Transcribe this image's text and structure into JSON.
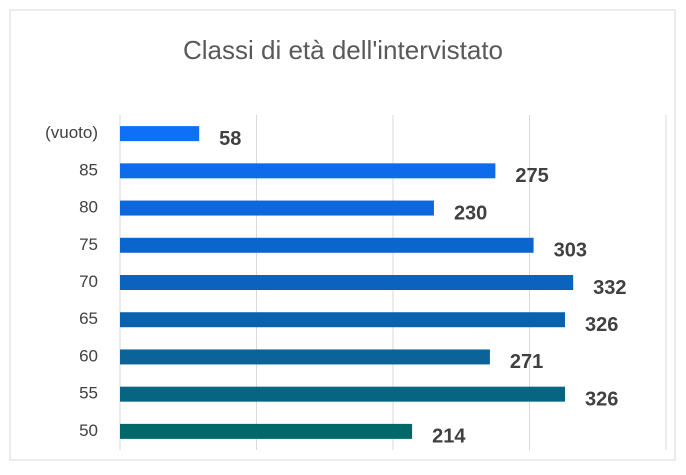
{
  "chart_data": {
    "type": "bar",
    "orientation": "horizontal",
    "title": "Classi di età dell'intervistato",
    "categories": [
      "(vuoto)",
      "85",
      "80",
      "75",
      "70",
      "65",
      "60",
      "55",
      "50"
    ],
    "values": [
      58,
      275,
      230,
      303,
      332,
      326,
      271,
      326,
      214
    ],
    "colors": [
      "#0f6ff6",
      "#0c6ce9",
      "#0b69dc",
      "#0a66cc",
      "#0b63bd",
      "#0b62ac",
      "#0a6399",
      "#076584",
      "#006868"
    ],
    "xlim": [
      0,
      400
    ],
    "xticks": [
      0,
      100,
      200,
      300,
      400
    ],
    "grid": true
  }
}
